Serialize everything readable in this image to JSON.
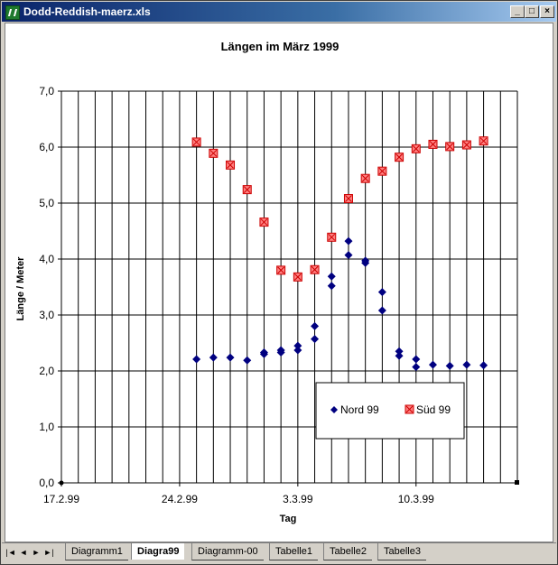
{
  "window": {
    "title": "Dodd-Reddish-maerz.xls",
    "controls": [
      "_",
      "□",
      "×"
    ]
  },
  "sheet_tabs": {
    "tabs": [
      "Diagramm1",
      "Diagra99",
      "Diagramm-00",
      "Tabelle1",
      "Tabelle2",
      "Tabelle3"
    ],
    "active": "Diagra99",
    "nav": [
      "|◄",
      "◄",
      "►",
      "►|"
    ]
  },
  "chart_data": {
    "type": "scatter",
    "title": "Längen im März 1999",
    "xlabel": "Tag",
    "ylabel": "Länge / Meter",
    "x_ticks": [
      "17.2.99",
      "24.2.99",
      "3.3.99",
      "10.3.99"
    ],
    "y_ticks": [
      "0,0",
      "1,0",
      "2,0",
      "3,0",
      "4,0",
      "5,0",
      "6,0",
      "7,0"
    ],
    "ylim": [
      0,
      7
    ],
    "xlim": [
      "1999-02-17",
      "1999-03-16"
    ],
    "grid": true,
    "legend_position": "bottom-right",
    "series": [
      {
        "name": "Nord 99",
        "marker": "diamond",
        "color": "#000080",
        "points": [
          [
            "1999-02-25",
            2.21
          ],
          [
            "1999-02-26",
            2.24
          ],
          [
            "1999-02-27",
            2.24
          ],
          [
            "1999-02-28",
            2.19
          ],
          [
            "1999-03-01",
            2.3
          ],
          [
            "1999-03-01",
            2.33
          ],
          [
            "1999-03-02",
            2.37
          ],
          [
            "1999-03-02",
            2.33
          ],
          [
            "1999-03-03",
            2.37
          ],
          [
            "1999-03-03",
            2.45
          ],
          [
            "1999-03-04",
            2.57
          ],
          [
            "1999-03-04",
            2.8
          ],
          [
            "1999-03-05",
            3.52
          ],
          [
            "1999-03-05",
            3.69
          ],
          [
            "1999-03-06",
            4.07
          ],
          [
            "1999-03-06",
            4.32
          ],
          [
            "1999-03-07",
            3.97
          ],
          [
            "1999-03-07",
            3.93
          ],
          [
            "1999-03-08",
            3.41
          ],
          [
            "1999-03-08",
            3.08
          ],
          [
            "1999-03-09",
            2.35
          ],
          [
            "1999-03-09",
            2.27
          ],
          [
            "1999-03-10",
            2.21
          ],
          [
            "1999-03-10",
            2.07
          ],
          [
            "1999-03-11",
            2.11
          ],
          [
            "1999-03-12",
            2.09
          ],
          [
            "1999-03-13",
            2.11
          ],
          [
            "1999-03-14",
            2.1
          ]
        ]
      },
      {
        "name": "Süd 99",
        "marker": "square-x",
        "color": "#ff0000",
        "points": [
          [
            "1999-02-25",
            6.09
          ],
          [
            "1999-02-26",
            5.89
          ],
          [
            "1999-02-27",
            5.68
          ],
          [
            "1999-02-28",
            5.24
          ],
          [
            "1999-03-01",
            4.66
          ],
          [
            "1999-03-02",
            3.8
          ],
          [
            "1999-03-03",
            3.68
          ],
          [
            "1999-03-04",
            3.81
          ],
          [
            "1999-03-05",
            4.39
          ],
          [
            "1999-03-06",
            5.08
          ],
          [
            "1999-03-07",
            5.44
          ],
          [
            "1999-03-08",
            5.57
          ],
          [
            "1999-03-09",
            5.82
          ],
          [
            "1999-03-10",
            5.97
          ],
          [
            "1999-03-11",
            6.05
          ],
          [
            "1999-03-12",
            6.01
          ],
          [
            "1999-03-13",
            6.04
          ],
          [
            "1999-03-14",
            6.11
          ]
        ]
      }
    ]
  }
}
